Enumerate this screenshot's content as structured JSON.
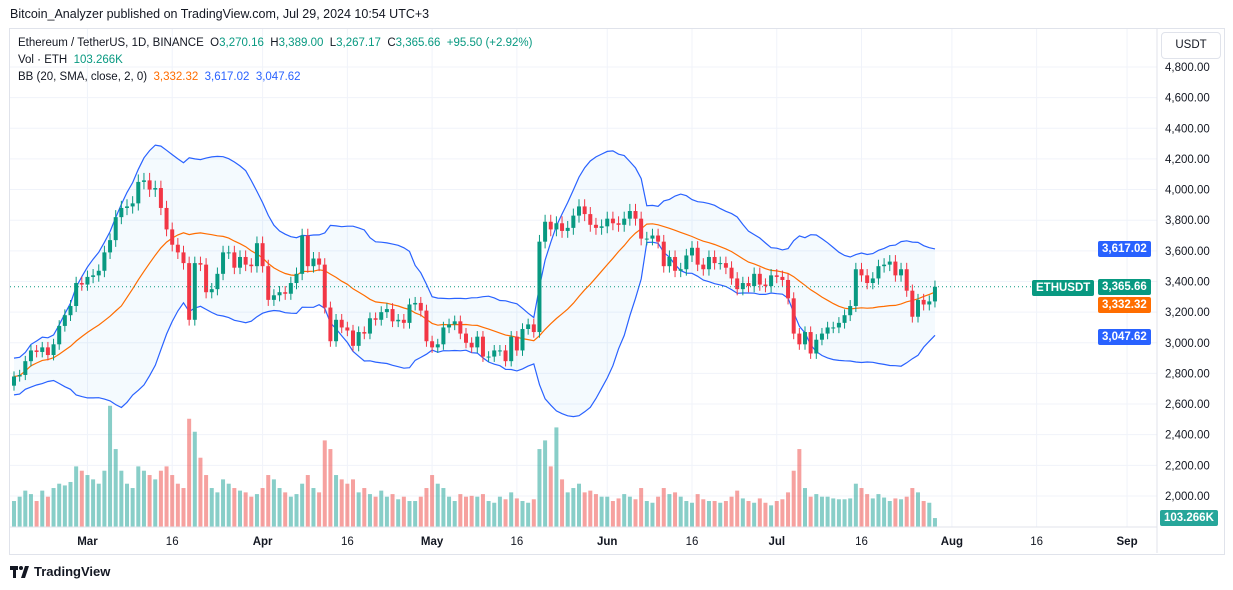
{
  "published": "Bitcoin_Analyzer published on TradingView.com, Jul 29, 2024 10:54 UTC+3",
  "legend": {
    "symbol": "Ethereum / TetherUS, 1D, BINANCE",
    "o_label": "O",
    "o": "3,270.16",
    "h_label": "H",
    "h": "3,389.00",
    "l_label": "L",
    "l": "3,267.17",
    "c_label": "C",
    "c": "3,365.66",
    "change": "+95.50 (+2.92%)",
    "vol_label": "Vol · ETH",
    "vol": "103.266K",
    "bb_label": "BB (20, SMA, close, 2, 0)",
    "bb_basis": "3,332.32",
    "bb_upper": "3,617.02",
    "bb_lower": "3,047.62"
  },
  "currency_button": "USDT",
  "tags": {
    "symbol": "ETHUSDT",
    "price": "3,365.66",
    "basis": "3,332.32",
    "upper": "3,617.02",
    "lower": "3,047.62",
    "volume": "103.266K"
  },
  "colors": {
    "up": "#089981",
    "down": "#f23645",
    "vol_up": "#26a69a",
    "vol_down": "#ef5350",
    "bb_band": "#2962ff",
    "bb_basis": "#ff6d00"
  },
  "footer_logo": "TradingView",
  "chart_data": {
    "type": "candlestick",
    "y_ticks": [
      "4,800.00",
      "4,600.00",
      "4,400.00",
      "4,200.00",
      "4,000.00",
      "3,800.00",
      "3,600.00",
      "3,400.00",
      "3,200.00",
      "3,000.00",
      "2,800.00",
      "2,600.00",
      "2,400.00",
      "2,200.00",
      "2,000.00"
    ],
    "x_ticks": [
      "Mar",
      "16",
      "Apr",
      "16",
      "May",
      "16",
      "Jun",
      "16",
      "Jul",
      "16",
      "Aug",
      "16",
      "Sep"
    ],
    "ylim": [
      2000,
      4800
    ],
    "first_open": 2720,
    "closes": [
      2780,
      2790,
      2880,
      2950,
      2940,
      2970,
      2920,
      2990,
      3110,
      3180,
      3240,
      3390,
      3380,
      3430,
      3440,
      3470,
      3590,
      3670,
      3820,
      3880,
      3890,
      3910,
      4050,
      4060,
      4000,
      4010,
      3880,
      3740,
      3640,
      3590,
      3520,
      3150,
      3520,
      3510,
      3330,
      3350,
      3450,
      3590,
      3590,
      3490,
      3560,
      3510,
      3500,
      3650,
      3500,
      3280,
      3310,
      3330,
      3320,
      3390,
      3450,
      3700,
      3500,
      3550,
      3510,
      3230,
      3010,
      3150,
      3100,
      3080,
      2980,
      3070,
      3060,
      3160,
      3150,
      3200,
      3220,
      3140,
      3150,
      3130,
      3250,
      3260,
      3210,
      3010,
      2970,
      2990,
      3100,
      3120,
      3140,
      3060,
      3000,
      2970,
      3040,
      2910,
      2910,
      2950,
      2950,
      2880,
      3040,
      2950,
      3090,
      3120,
      3070,
      3660,
      3790,
      3740,
      3780,
      3730,
      3750,
      3830,
      3890,
      3840,
      3770,
      3750,
      3760,
      3810,
      3780,
      3770,
      3810,
      3860,
      3810,
      3680,
      3680,
      3700,
      3660,
      3500,
      3560,
      3470,
      3480,
      3570,
      3620,
      3510,
      3480,
      3560,
      3520,
      3520,
      3490,
      3420,
      3350,
      3390,
      3370,
      3450,
      3380,
      3370,
      3440,
      3430,
      3410,
      3290,
      3060,
      2990,
      3070,
      2930,
      3020,
      3060,
      3100,
      3100,
      3130,
      3180,
      3240,
      3480,
      3440,
      3390,
      3420,
      3500,
      3510,
      3530,
      3440,
      3480,
      3340,
      3170,
      3280,
      3250,
      3270,
      3365.66
    ],
    "volumes_k": [
      300,
      350,
      420,
      380,
      300,
      420,
      350,
      450,
      500,
      480,
      520,
      700,
      650,
      600,
      550,
      500,
      650,
      1400,
      900,
      650,
      500,
      450,
      700,
      650,
      600,
      550,
      650,
      700,
      600,
      500,
      450,
      1250,
      1100,
      800,
      600,
      450,
      400,
      550,
      500,
      450,
      420,
      400,
      350,
      380,
      450,
      600,
      550,
      450,
      400,
      350,
      380,
      500,
      600,
      450,
      400,
      1000,
      900,
      600,
      550,
      500,
      550,
      400,
      450,
      380,
      350,
      420,
      350,
      380,
      320,
      350,
      300,
      300,
      350,
      450,
      600,
      500,
      450,
      350,
      300,
      380,
      350,
      360,
      350,
      380,
      300,
      280,
      350,
      320,
      400,
      330,
      300,
      280,
      320,
      900,
      1000,
      700,
      1150,
      550,
      400,
      450,
      500,
      400,
      420,
      380,
      350,
      350,
      300,
      330,
      380,
      350,
      320,
      450,
      300,
      280,
      350,
      450,
      380,
      400,
      350,
      300,
      280,
      380,
      320,
      300,
      300,
      280,
      300,
      350,
      420,
      330,
      300,
      280,
      330,
      280,
      250,
      300,
      320,
      400,
      650,
      900,
      450,
      350,
      380,
      350,
      350,
      330,
      320,
      320,
      330,
      500,
      450,
      380,
      330,
      380,
      340,
      300,
      330,
      320,
      350,
      450,
      400,
      300,
      280,
      103.266
    ],
    "indicator": {
      "type": "bollinger",
      "length": 20,
      "mult": 2
    }
  }
}
